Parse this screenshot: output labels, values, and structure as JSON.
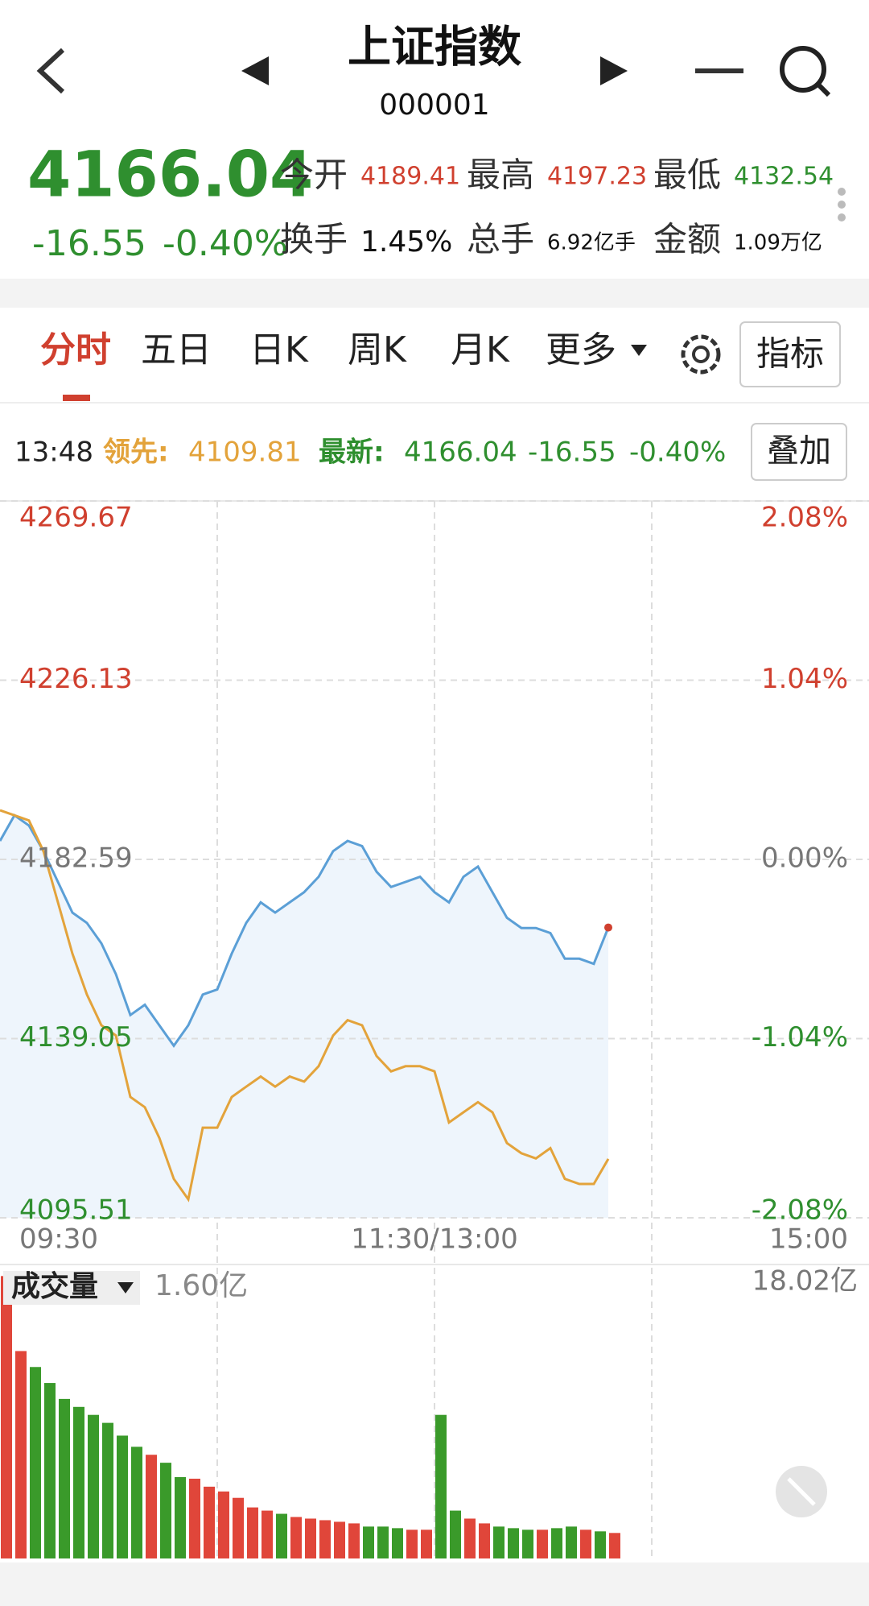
{
  "header": {
    "title": "上证指数",
    "code": "000001",
    "price": "4166.04",
    "change": "-16.55",
    "change_pct": "-0.40%",
    "stats": [
      {
        "label": "今开",
        "value": "4189.41"
      },
      {
        "label": "最高",
        "value": "4197.23"
      },
      {
        "label": "最低",
        "value": "4132.54"
      },
      {
        "label": "换手",
        "value": "1.45%"
      },
      {
        "label": "总手",
        "value": "6.92亿手"
      },
      {
        "label": "金额",
        "value": "1.09万亿"
      }
    ]
  },
  "tabs": [
    "分时",
    "五日",
    "日K",
    "周K",
    "月K",
    "更多"
  ],
  "indicator_button": "指标",
  "info_bar": {
    "time": "13:48",
    "lead_label": "领先:",
    "lead_value": "4109.81",
    "latest_label": "最新:",
    "latest_value": "4166.04",
    "latest_change": "-16.55",
    "latest_pct": "-0.40%",
    "overlay_button": "叠加"
  },
  "chart_data": {
    "type": "line",
    "x": [
      0,
      4,
      8,
      12,
      16,
      20,
      24,
      28,
      32,
      36,
      40,
      44,
      48,
      52,
      56,
      60,
      64,
      68,
      72,
      76,
      80,
      84,
      88,
      92,
      96,
      100,
      104,
      108,
      112,
      116,
      120,
      124,
      128,
      132,
      136,
      140,
      144,
      148,
      152,
      156,
      160,
      164,
      168
    ],
    "xlim": [
      0,
      240
    ],
    "xticks": [
      {
        "value": 0,
        "label": "09:30"
      },
      {
        "value": 120,
        "label": "11:30/13:00"
      },
      {
        "value": 240,
        "label": "15:00"
      }
    ],
    "ylim": [
      4095.51,
      4269.67
    ],
    "yticks": [
      4269.67,
      4226.13,
      4182.59,
      4139.05,
      4095.51
    ],
    "y2lim": [
      -2.08,
      2.08
    ],
    "y2ticks": [
      {
        "value": 2.08,
        "label": "2.08%"
      },
      {
        "value": 1.04,
        "label": "1.04%"
      },
      {
        "value": 0,
        "label": "0.00%"
      },
      {
        "value": -1.04,
        "label": "-1.04%"
      },
      {
        "value": -2.08,
        "label": "-2.08%"
      }
    ],
    "grid": true,
    "series": [
      {
        "color": "#5b9fd6",
        "fill": "#eef5fc",
        "values": [
          4187.07,
          4193.29,
          4190.8,
          4184.58,
          4177.12,
          4169.65,
          4167.16,
          4162.19,
          4154.72,
          4144.77,
          4147.26,
          4142.28,
          4137.31,
          4142.28,
          4149.75,
          4150.99,
          4159.7,
          4167.16,
          4172.14,
          4169.65,
          4172.14,
          4174.63,
          4178.36,
          4184.58,
          4187.07,
          4185.82,
          4179.6,
          4175.87,
          4177.12,
          4178.36,
          4174.63,
          4172.14,
          4178.36,
          4180.85,
          4174.63,
          4168.41,
          4165.92,
          4165.92,
          4164.68,
          4158.46,
          4158.46,
          4157.21,
          4166.04
        ]
      },
      {
        "color": "#e3a33b",
        "values": [
          4194.53,
          4193.29,
          4192.04,
          4184.58,
          4172.14,
          4159.7,
          4149.75,
          4142.28,
          4139.8,
          4124.87,
          4122.38,
          4114.92,
          4104.96,
          4099.99,
          4117.4,
          4117.4,
          4124.87,
          4127.36,
          4129.84,
          4127.36,
          4129.84,
          4128.6,
          4132.33,
          4139.8,
          4143.53,
          4142.28,
          4134.82,
          4131.09,
          4132.33,
          4132.33,
          4131.09,
          4118.65,
          4121.14,
          4123.62,
          4121.14,
          4113.67,
          4111.18,
          4109.94,
          4112.43,
          4104.96,
          4103.72,
          4103.72,
          4109.81
        ]
      }
    ]
  },
  "volume_chart": {
    "type": "bar",
    "label": "成交量",
    "current": "1.60亿",
    "ylim": [
      0,
      18.02
    ],
    "yticks": [
      {
        "value": 18.02,
        "label": "18.02亿"
      }
    ],
    "values": [
      17.7,
      13,
      12,
      11,
      10,
      9.5,
      9,
      8.5,
      7.7,
      7,
      6.5,
      6,
      5.1,
      5,
      4.5,
      4.2,
      3.8,
      3.2,
      3,
      2.8,
      2.6,
      2.5,
      2.4,
      2.3,
      2.2,
      2,
      2,
      1.9,
      1.8,
      1.8,
      9,
      3,
      2.5,
      2.2,
      2,
      1.9,
      1.8,
      1.8,
      1.9,
      2,
      1.8,
      1.7,
      1.6
    ],
    "up_color": "#e0463a",
    "down_color": "#3a9a2a"
  }
}
